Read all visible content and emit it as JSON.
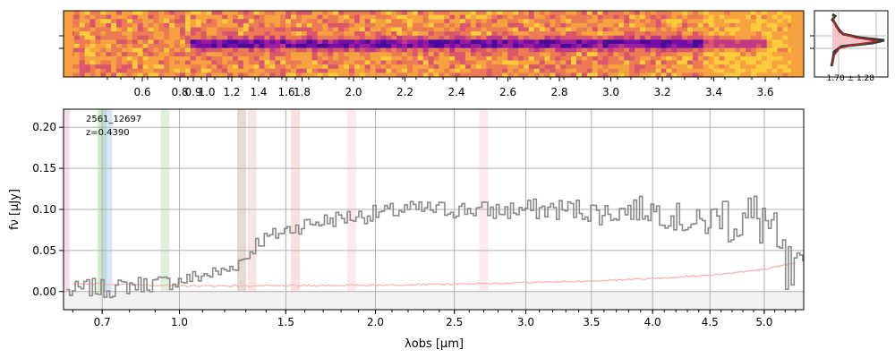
{
  "spectrum_2d": {
    "wavelength_ticks": [
      "0.6",
      "0.8",
      "0.9",
      "1.0",
      "1.2",
      "1.4",
      "1.6",
      "1.8",
      "2.0",
      "2.2",
      "2.4",
      "2.6",
      "2.8",
      "3.0",
      "3.2",
      "3.4",
      "3.6"
    ],
    "colormap": "plasma_r",
    "trace_color": "#7a1fa2"
  },
  "profile_panel": {
    "label": "1.70 ± 1.28",
    "fill_color": "#f7c5c8",
    "line_color": "#3a3a3a",
    "fit_color": "#b52b2b"
  },
  "chart_data": {
    "type": "line",
    "id_label": "2561_12697",
    "z_label": "z=0.4390",
    "xlabel": "λobs [μm]",
    "ylabel": "fν [μJy]",
    "xscale": "sqrt",
    "xlim": [
      0.57,
      5.38
    ],
    "ylim": [
      -0.022,
      0.222
    ],
    "x_ticks": [
      "0.7",
      "1.0",
      "1.5",
      "2.0",
      "2.5",
      "3.0",
      "3.5",
      "4.0",
      "4.5",
      "5.0"
    ],
    "y_ticks": [
      "0.00",
      "0.05",
      "0.10",
      "0.15",
      "0.20"
    ],
    "grid": true,
    "series": [
      {
        "role": "flux",
        "color": "#8a8a8a",
        "x": [
          0.6,
          0.65,
          0.7,
          0.75,
          0.8,
          0.9,
          1.0,
          1.1,
          1.2,
          1.3,
          1.35,
          1.4,
          1.5,
          1.6,
          1.7,
          1.8,
          1.9,
          2.0,
          2.2,
          2.4,
          2.6,
          2.8,
          3.0,
          3.2,
          3.4,
          3.6,
          3.8,
          4.0,
          4.2,
          4.4,
          4.6,
          4.8,
          5.0,
          5.1,
          5.2,
          5.3
        ],
        "y": [
          0.0,
          0.005,
          0.003,
          0.004,
          0.008,
          0.01,
          0.013,
          0.02,
          0.025,
          0.042,
          0.06,
          0.065,
          0.075,
          0.082,
          0.086,
          0.09,
          0.092,
          0.095,
          0.1,
          0.1,
          0.1,
          0.098,
          0.1,
          0.1,
          0.1,
          0.095,
          0.1,
          0.1,
          0.09,
          0.08,
          0.095,
          0.085,
          0.09,
          0.05,
          0.02,
          0.0
        ]
      },
      {
        "role": "uncertainty",
        "color": "#f4b6b6",
        "x": [
          0.6,
          1.0,
          1.5,
          2.0,
          2.5,
          3.0,
          3.5,
          4.0,
          4.5,
          5.0,
          5.3
        ],
        "y": [
          0.01,
          0.007,
          0.007,
          0.008,
          0.009,
          0.011,
          0.013,
          0.016,
          0.02,
          0.027,
          0.035
        ]
      }
    ],
    "line_bands": [
      {
        "x": 0.575,
        "color": "#e8b4d8"
      },
      {
        "x": 0.7,
        "color": "#8fd08f"
      },
      {
        "x": 0.72,
        "color": "#a8c8ec"
      },
      {
        "x": 0.94,
        "color": "#b8e0b8"
      },
      {
        "x": 1.28,
        "color": "#c8a8a0"
      },
      {
        "x": 1.33,
        "color": "#f0c8c8"
      },
      {
        "x": 1.55,
        "color": "#f8b8b8"
      },
      {
        "x": 1.86,
        "color": "#fbd0dc"
      },
      {
        "x": 2.7,
        "color": "#fbd0dc"
      }
    ]
  }
}
